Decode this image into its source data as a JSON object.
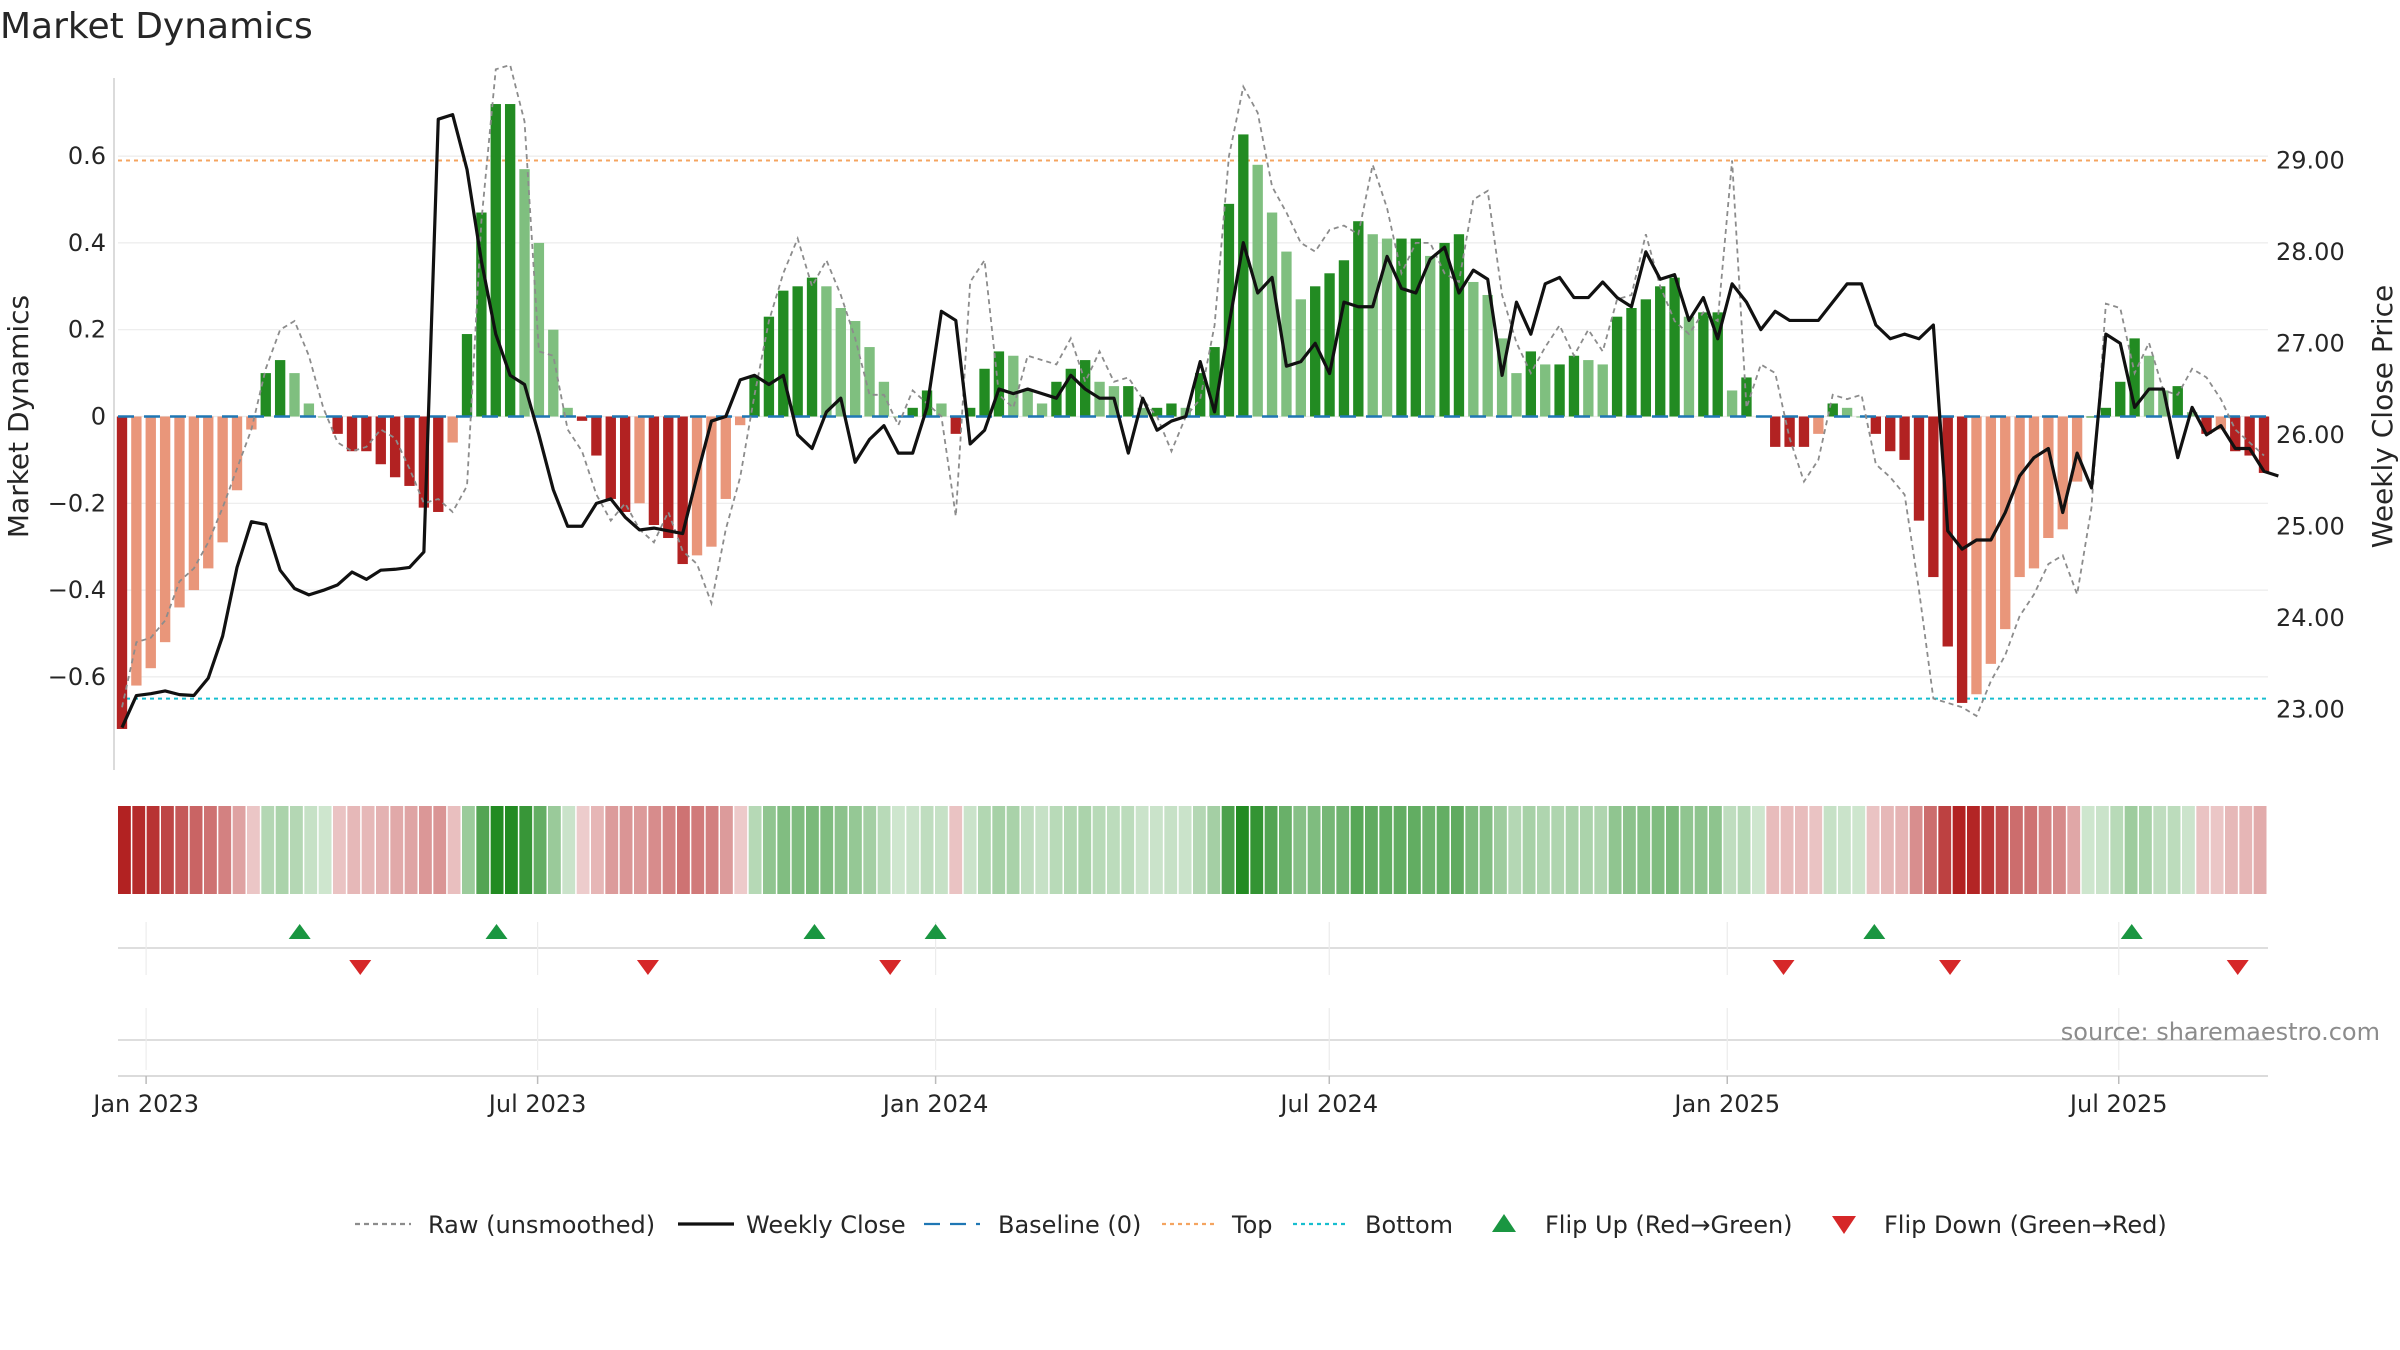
{
  "chart_data": {
    "title": "Market Dynamics",
    "type": "bar+line",
    "x_axis": {
      "ticks": [
        "Jan 2023",
        "Jul 2023",
        "Jan 2024",
        "Jul 2024",
        "Jan 2025",
        "Jul 2025"
      ],
      "range": [
        "2022-12-19",
        "2025-09-08"
      ],
      "interval": "weekly"
    },
    "y_left": {
      "label": "Market Dynamics",
      "ticks": [
        -0.6,
        -0.4,
        -0.2,
        0,
        0.2,
        0.4,
        0.6
      ],
      "range": [
        -0.78,
        0.78
      ]
    },
    "y_right": {
      "label": "Weekly Close Price",
      "ticks": [
        "23.00",
        "24.00",
        "25.00",
        "26.00",
        "27.00",
        "28.00",
        "29.00"
      ],
      "range": [
        22.5,
        29.9
      ]
    },
    "reference_lines": {
      "top": 0.59,
      "bottom": -0.65,
      "baseline": 0
    },
    "colors": {
      "strong_up": "#228b22",
      "weak_up": "#7fbf7f",
      "strong_down": "#b22222",
      "weak_down": "#e9967a",
      "raw": "#8c8c8c",
      "close": "#111111",
      "baseline": "#1f77b4",
      "top": "#f4a460",
      "bottom": "#17becf",
      "flip_up": "#1a9641",
      "flip_down": "#d62728"
    },
    "series": [
      {
        "name": "Market Dynamics",
        "kind": "bar",
        "values": [
          -0.72,
          -0.62,
          -0.58,
          -0.52,
          -0.44,
          -0.4,
          -0.35,
          -0.29,
          -0.17,
          -0.03,
          0.1,
          0.13,
          0.1,
          0.03,
          0.0,
          -0.04,
          -0.08,
          -0.08,
          -0.11,
          -0.14,
          -0.16,
          -0.21,
          -0.22,
          -0.06,
          0.19,
          0.47,
          0.72,
          0.72,
          0.57,
          0.4,
          0.2,
          0.02,
          -0.01,
          -0.09,
          -0.19,
          -0.22,
          -0.2,
          -0.25,
          -0.28,
          -0.34,
          -0.32,
          -0.3,
          -0.19,
          -0.02,
          0.09,
          0.23,
          0.29,
          0.3,
          0.32,
          0.3,
          0.25,
          0.22,
          0.16,
          0.08,
          0.0,
          0.02,
          0.06,
          0.03,
          -0.04,
          0.02,
          0.11,
          0.15,
          0.14,
          0.06,
          0.03,
          0.08,
          0.11,
          0.13,
          0.08,
          0.07,
          0.07,
          0.02,
          0.02,
          0.03,
          0.02,
          0.1,
          0.16,
          0.49,
          0.65,
          0.58,
          0.47,
          0.38,
          0.27,
          0.3,
          0.33,
          0.36,
          0.45,
          0.42,
          0.41,
          0.41,
          0.41,
          0.37,
          0.4,
          0.42,
          0.31,
          0.28,
          0.18,
          0.1,
          0.15,
          0.12,
          0.12,
          0.14,
          0.13,
          0.12,
          0.23,
          0.25,
          0.27,
          0.3,
          0.32,
          0.23,
          0.24,
          0.24,
          0.06,
          0.09,
          0.0,
          -0.07,
          -0.07,
          -0.07,
          -0.04,
          0.03,
          0.02,
          0.0,
          -0.04,
          -0.08,
          -0.1,
          -0.24,
          -0.37,
          -0.53,
          -0.66,
          -0.64,
          -0.57,
          -0.49,
          -0.37,
          -0.35,
          -0.28,
          -0.26,
          -0.15,
          0.0,
          0.02,
          0.08,
          0.18,
          0.14,
          0.06,
          0.07,
          0.01,
          -0.04,
          -0.03,
          -0.08,
          -0.09,
          -0.13
        ]
      },
      {
        "name": "Raw (unsmoothed)",
        "kind": "line",
        "values": [
          -0.67,
          -0.52,
          -0.51,
          -0.47,
          -0.38,
          -0.35,
          -0.29,
          -0.21,
          -0.12,
          -0.03,
          0.11,
          0.2,
          0.22,
          0.14,
          0.02,
          -0.06,
          -0.08,
          -0.07,
          -0.03,
          -0.05,
          -0.12,
          -0.2,
          -0.19,
          -0.22,
          -0.16,
          0.45,
          0.8,
          0.81,
          0.68,
          0.15,
          0.14,
          -0.03,
          -0.08,
          -0.18,
          -0.24,
          -0.2,
          -0.26,
          -0.29,
          -0.22,
          -0.31,
          -0.34,
          -0.43,
          -0.26,
          -0.14,
          0.05,
          0.22,
          0.33,
          0.41,
          0.3,
          0.36,
          0.28,
          0.18,
          0.05,
          0.05,
          -0.02,
          0.06,
          0.03,
          0.0,
          -0.23,
          0.31,
          0.36,
          0.05,
          0.02,
          0.14,
          0.13,
          0.12,
          0.18,
          0.08,
          0.15,
          0.08,
          0.09,
          0.04,
          0.0,
          -0.08,
          0.0,
          0.04,
          0.21,
          0.6,
          0.76,
          0.7,
          0.53,
          0.47,
          0.4,
          0.38,
          0.43,
          0.44,
          0.42,
          0.58,
          0.48,
          0.33,
          0.4,
          0.4,
          0.33,
          0.31,
          0.5,
          0.52,
          0.28,
          0.17,
          0.1,
          0.16,
          0.21,
          0.14,
          0.2,
          0.15,
          0.27,
          0.28,
          0.42,
          0.3,
          0.22,
          0.19,
          0.24,
          0.22,
          0.59,
          0.02,
          0.12,
          0.1,
          -0.05,
          -0.15,
          -0.1,
          0.05,
          0.04,
          0.05,
          -0.11,
          -0.14,
          -0.18,
          -0.4,
          -0.65,
          -0.66,
          -0.67,
          -0.69,
          -0.61,
          -0.55,
          -0.46,
          -0.41,
          -0.34,
          -0.32,
          -0.41,
          -0.21,
          0.26,
          0.25,
          0.1,
          0.17,
          0.06,
          0.05,
          0.11,
          0.09,
          0.04,
          -0.03,
          -0.06,
          -0.09
        ]
      },
      {
        "name": "Weekly Close",
        "kind": "line",
        "axis": "right",
        "values": [
          22.8,
          23.15,
          23.17,
          23.2,
          23.16,
          23.15,
          23.34,
          23.8,
          24.55,
          25.05,
          25.02,
          24.52,
          24.32,
          24.25,
          24.3,
          24.36,
          24.5,
          24.42,
          24.52,
          24.53,
          24.55,
          24.72,
          29.45,
          29.5,
          28.9,
          27.9,
          27.1,
          26.65,
          26.55,
          26.0,
          25.4,
          25.0,
          25.0,
          25.25,
          25.3,
          25.1,
          24.96,
          24.98,
          24.95,
          24.92,
          25.55,
          26.15,
          26.2,
          26.6,
          26.65,
          26.55,
          26.65,
          26.0,
          25.85,
          26.25,
          26.4,
          25.7,
          25.95,
          26.1,
          25.8,
          25.8,
          26.3,
          27.35,
          27.25,
          25.9,
          26.05,
          26.5,
          26.45,
          26.5,
          26.45,
          26.4,
          26.65,
          26.5,
          26.4,
          26.4,
          25.8,
          26.4,
          26.05,
          26.15,
          26.2,
          26.8,
          26.25,
          27.2,
          28.1,
          27.55,
          27.72,
          26.75,
          26.8,
          27.0,
          26.67,
          27.45,
          27.4,
          27.4,
          27.95,
          27.6,
          27.55,
          27.92,
          28.05,
          27.55,
          27.8,
          27.7,
          26.65,
          27.45,
          27.1,
          27.65,
          27.72,
          27.5,
          27.5,
          27.67,
          27.5,
          27.4,
          28.0,
          27.7,
          27.75,
          27.25,
          27.5,
          27.05,
          27.65,
          27.45,
          27.15,
          27.35,
          27.25,
          27.25,
          27.25,
          27.45,
          27.65,
          27.65,
          27.2,
          27.05,
          27.1,
          27.05,
          27.2,
          24.95,
          24.75,
          24.85,
          24.85,
          25.15,
          25.55,
          25.75,
          25.85,
          25.15,
          25.8,
          25.42,
          27.1,
          27.0,
          26.3,
          26.5,
          26.5,
          25.75,
          26.3,
          26.0,
          26.1,
          25.85,
          25.85,
          25.6,
          25.55
        ]
      }
    ],
    "strip": {
      "description": "color-coded regime strip",
      "values_ref": "Market Dynamics"
    },
    "flip_markers": {
      "up": [
        "2023-03-13",
        "2023-06-12",
        "2023-11-06",
        "2024-01-01",
        "2025-03-10",
        "2025-07-07"
      ],
      "down": [
        "2023-04-10",
        "2023-08-21",
        "2023-12-11",
        "2025-01-27",
        "2025-04-14",
        "2025-08-25"
      ]
    },
    "legend": [
      {
        "label": "Raw (unsmoothed)",
        "style": "dashed",
        "color": "#8c8c8c",
        "marker": "line"
      },
      {
        "label": "Weekly Close",
        "style": "solid",
        "color": "#111111",
        "marker": "line"
      },
      {
        "label": "Baseline (0)",
        "style": "dashed",
        "color": "#1f77b4",
        "marker": "line"
      },
      {
        "label": "Top",
        "style": "dotted",
        "color": "#f4a460",
        "marker": "line"
      },
      {
        "label": "Bottom",
        "style": "dotted",
        "color": "#17becf",
        "marker": "line"
      },
      {
        "label": "Flip Up (Red→Green)",
        "color": "#1a9641",
        "marker": "triangle-up"
      },
      {
        "label": "Flip Down (Green→Red)",
        "color": "#d62728",
        "marker": "triangle-down"
      }
    ],
    "legend_position": "bottom",
    "grid": true,
    "source": "source: sharemaestro.com"
  }
}
